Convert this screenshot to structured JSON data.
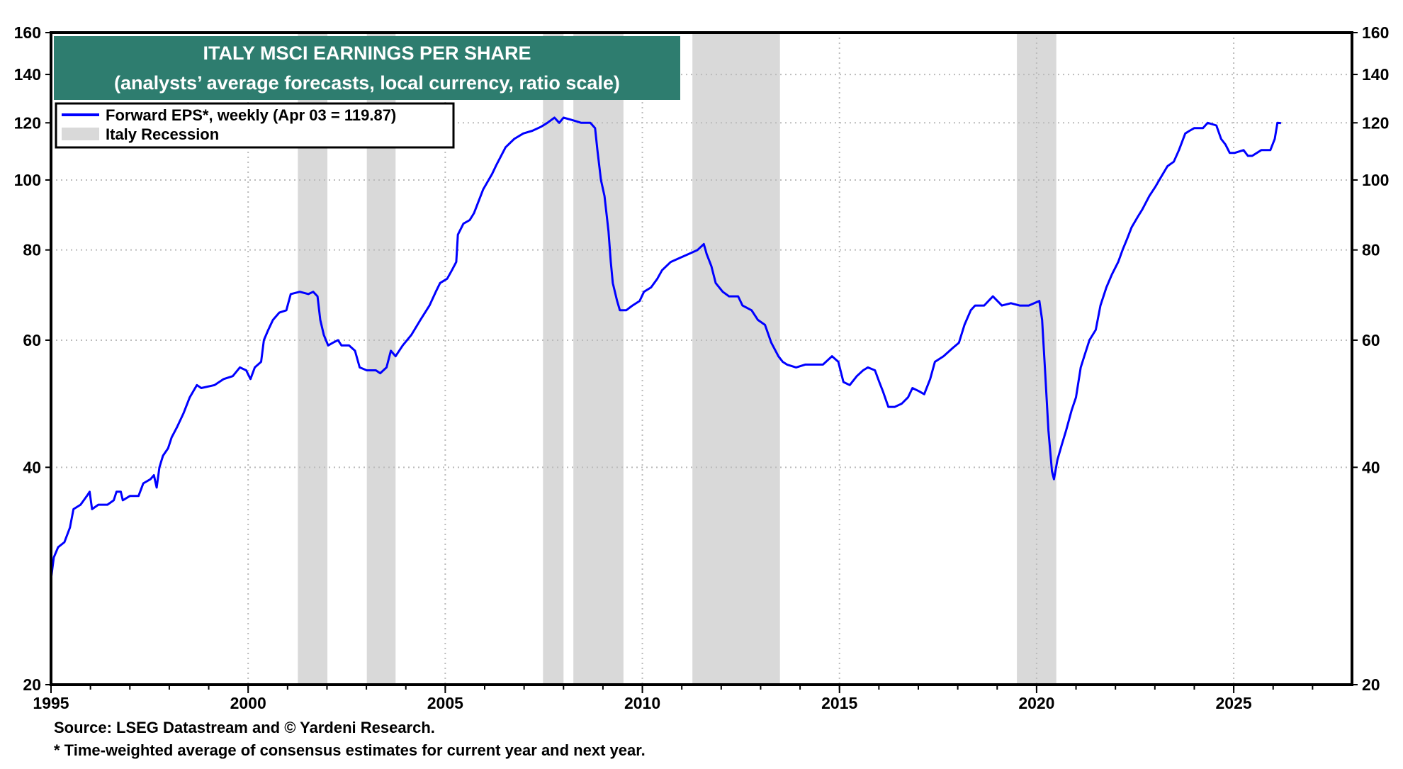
{
  "chart_data": {
    "type": "line",
    "title": "ITALY MSCI EARNINGS PER SHARE",
    "subtitle": "(analysts’ average forecasts, local currency, ratio scale)",
    "title_bg_color": "#2e7d6f",
    "xlabel": "",
    "ylabel": "",
    "y_scale": "log",
    "xlim": [
      1995,
      2028
    ],
    "ylim": [
      20,
      160
    ],
    "x_ticks": [
      "1995",
      "2000",
      "2005",
      "2010",
      "2015",
      "2020",
      "2025"
    ],
    "y_ticks": [
      "20",
      "40",
      "60",
      "80",
      "100",
      "120",
      "140",
      "160"
    ],
    "grid": true,
    "legend_placement": "top-left",
    "legend": [
      {
        "label": "Forward EPS*, weekly (Apr 03 = 119.87)",
        "kind": "line",
        "color": "#0000ff"
      },
      {
        "label": "Italy Recession",
        "kind": "band",
        "color": "#d9d9d9"
      }
    ],
    "recessions": [
      [
        2001.26,
        2002.01
      ],
      [
        2003.01,
        2003.74
      ],
      [
        2007.48,
        2008.0
      ],
      [
        2008.25,
        2009.52
      ],
      [
        2011.27,
        2013.49
      ],
      [
        2019.5,
        2020.5
      ]
    ],
    "series": [
      {
        "name": "Forward EPS*, weekly (Apr 03 = 119.87)",
        "color": "#0000ff",
        "x": [
          1995.0,
          1995.07,
          1995.18,
          1995.34,
          1995.48,
          1995.57,
          1995.75,
          1995.91,
          1995.98,
          1996.04,
          1996.2,
          1996.43,
          1996.59,
          1996.66,
          1996.77,
          1996.82,
          1997.0,
          1997.22,
          1997.34,
          1997.52,
          1997.61,
          1997.68,
          1997.75,
          1997.84,
          1997.97,
          1998.06,
          1998.2,
          1998.36,
          1998.52,
          1998.7,
          1998.81,
          1999.15,
          1999.38,
          1999.61,
          1999.79,
          1999.95,
          2000.06,
          2000.17,
          2000.33,
          2000.4,
          2000.51,
          2000.63,
          2000.79,
          2000.97,
          2001.08,
          2001.31,
          2001.53,
          2001.65,
          2001.76,
          2001.83,
          2001.92,
          2002.03,
          2002.15,
          2002.28,
          2002.37,
          2002.56,
          2002.71,
          2002.83,
          2003.01,
          2003.24,
          2003.35,
          2003.51,
          2003.62,
          2003.74,
          2003.92,
          2004.14,
          2004.37,
          2004.6,
          2004.76,
          2004.87,
          2005.05,
          2005.17,
          2005.28,
          2005.32,
          2005.46,
          2005.62,
          2005.73,
          2005.96,
          2006.19,
          2006.3,
          2006.53,
          2006.75,
          2006.98,
          2007.21,
          2007.43,
          2007.59,
          2007.77,
          2007.89,
          2008.0,
          2008.23,
          2008.45,
          2008.68,
          2008.8,
          2008.86,
          2008.95,
          2009.04,
          2009.14,
          2009.2,
          2009.25,
          2009.36,
          2009.43,
          2009.59,
          2009.75,
          2009.93,
          2010.04,
          2010.22,
          2010.38,
          2010.5,
          2010.72,
          2010.95,
          2011.18,
          2011.4,
          2011.56,
          2011.63,
          2011.75,
          2011.86,
          2012.04,
          2012.2,
          2012.43,
          2012.54,
          2012.77,
          2012.93,
          2013.11,
          2013.27,
          2013.45,
          2013.56,
          2013.67,
          2013.9,
          2014.13,
          2014.35,
          2014.58,
          2014.81,
          2014.97,
          2015.1,
          2015.26,
          2015.44,
          2015.6,
          2015.72,
          2015.9,
          2016.01,
          2016.1,
          2016.24,
          2016.4,
          2016.58,
          2016.74,
          2016.85,
          2017.01,
          2017.15,
          2017.3,
          2017.42,
          2017.64,
          2017.87,
          2018.03,
          2018.17,
          2018.33,
          2018.44,
          2018.67,
          2018.89,
          2019.12,
          2019.35,
          2019.57,
          2019.8,
          2020.07,
          2020.14,
          2020.21,
          2020.3,
          2020.39,
          2020.44,
          2020.53,
          2020.64,
          2020.75,
          2020.89,
          2021.0,
          2021.12,
          2021.21,
          2021.34,
          2021.5,
          2021.62,
          2021.77,
          2021.91,
          2022.07,
          2022.18,
          2022.3,
          2022.41,
          2022.57,
          2022.68,
          2022.86,
          2023.02,
          2023.16,
          2023.32,
          2023.48,
          2023.61,
          2023.77,
          2023.88,
          2024.0,
          2024.22,
          2024.34,
          2024.56,
          2024.68,
          2024.79,
          2024.9,
          2025.02,
          2025.25,
          2025.36,
          2025.47,
          2025.7,
          2025.93,
          2026.04,
          2026.11,
          2026.2
        ],
        "y": [
          28,
          30,
          31,
          31.5,
          33,
          35,
          35.5,
          36.5,
          37,
          35,
          35.5,
          35.5,
          36,
          37,
          37,
          36,
          36.5,
          36.5,
          38,
          38.5,
          39,
          37.5,
          40,
          41.5,
          42.5,
          44,
          45.5,
          47.5,
          50,
          52,
          51.5,
          52,
          53,
          53.5,
          55,
          54.5,
          53,
          55,
          56,
          60,
          62,
          64,
          65.5,
          66,
          69.5,
          70,
          69.5,
          70,
          69,
          64,
          61,
          59,
          59.5,
          60,
          59,
          59,
          58,
          55,
          54.5,
          54.5,
          54,
          55,
          58,
          57,
          59,
          61,
          64,
          67,
          70,
          72,
          73,
          75,
          77,
          84,
          87,
          88,
          90,
          97,
          102,
          105,
          111,
          114,
          116,
          117,
          118.5,
          120,
          122,
          120,
          122,
          121,
          120,
          120,
          118,
          110,
          100,
          95,
          85,
          77,
          72,
          68,
          66,
          66,
          67,
          68,
          70,
          71,
          73,
          75,
          77,
          78,
          79,
          80,
          81.5,
          79,
          76,
          72,
          70,
          69,
          69,
          67,
          66,
          64,
          63,
          59.5,
          57,
          56,
          55.5,
          55,
          55.5,
          55.5,
          55.5,
          57,
          56,
          52.5,
          52,
          53.5,
          54.5,
          55,
          54.5,
          52.5,
          51,
          48.5,
          48.5,
          49,
          50,
          51.5,
          51,
          50.5,
          53,
          56,
          57,
          58.5,
          59.5,
          63,
          66,
          67,
          67,
          69,
          67,
          67.5,
          67,
          67,
          68,
          64,
          55,
          45,
          39.5,
          38.5,
          41,
          43,
          45,
          48,
          50,
          55,
          57,
          60,
          62,
          67,
          71,
          74,
          77,
          80,
          83,
          86,
          89,
          91,
          95,
          98,
          101,
          104.5,
          106,
          110,
          116,
          117,
          118,
          118,
          120,
          119,
          114,
          112,
          109,
          109,
          110,
          108,
          108,
          110,
          110,
          114,
          120,
          119.87
        ]
      }
    ]
  },
  "footer": {
    "source": "Source: LSEG Datastream and © Yardeni Research.",
    "note": "* Time-weighted average of consensus estimates for current year and next year."
  }
}
